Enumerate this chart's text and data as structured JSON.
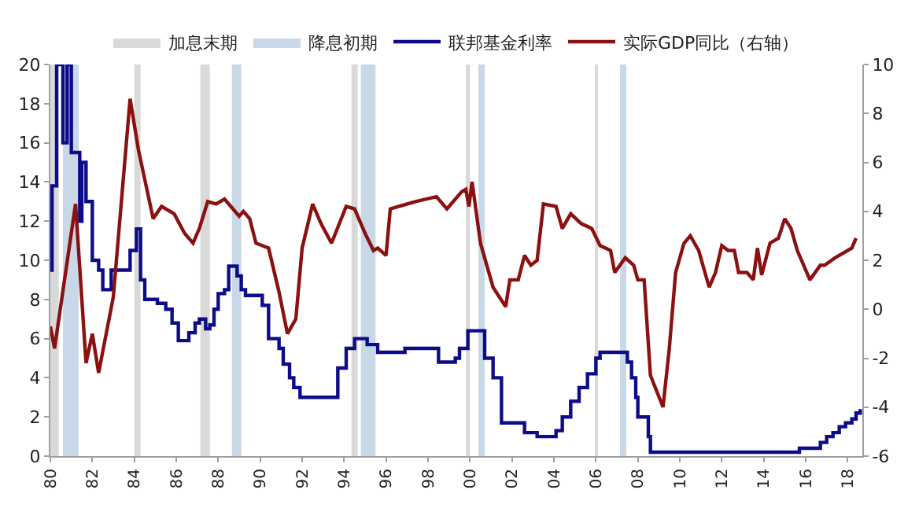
{
  "chart_data": {
    "type": "line",
    "xlim": [
      1980,
      2018.7
    ],
    "xticks": [
      {
        "value": 1980,
        "label": "80"
      },
      {
        "value": 1982,
        "label": "82"
      },
      {
        "value": 1984,
        "label": "84"
      },
      {
        "value": 1986,
        "label": "86"
      },
      {
        "value": 1988,
        "label": "88"
      },
      {
        "value": 1990,
        "label": "90"
      },
      {
        "value": 1992,
        "label": "92"
      },
      {
        "value": 1994,
        "label": "94"
      },
      {
        "value": 1996,
        "label": "96"
      },
      {
        "value": 1998,
        "label": "98"
      },
      {
        "value": 2000,
        "label": "00"
      },
      {
        "value": 2002,
        "label": "02"
      },
      {
        "value": 2004,
        "label": "04"
      },
      {
        "value": 2006,
        "label": "06"
      },
      {
        "value": 2008,
        "label": "08"
      },
      {
        "value": 2010,
        "label": "10"
      },
      {
        "value": 2012,
        "label": "12"
      },
      {
        "value": 2014,
        "label": "14"
      },
      {
        "value": 2016,
        "label": "16"
      },
      {
        "value": 2018,
        "label": "18"
      }
    ],
    "ylim": [
      0,
      20
    ],
    "yticks": [
      0,
      2,
      4,
      6,
      8,
      10,
      12,
      14,
      16,
      18,
      20
    ],
    "y2lim": [
      -6,
      10
    ],
    "y2ticks": [
      -6,
      -4,
      -2,
      0,
      2,
      4,
      6,
      8,
      10
    ],
    "legend": "top",
    "marker": "none",
    "line_style": "solid",
    "bands": [
      {
        "axis": "x",
        "from": 1980.0,
        "to": 1980.4,
        "label": "加息末期",
        "color": "#d9d9d9"
      },
      {
        "axis": "x",
        "from": 1980.6,
        "to": 1981.35,
        "label": "降息初期",
        "color": "#c9d8e6"
      },
      {
        "axis": "x",
        "from": 1984.0,
        "to": 1984.3,
        "label": null,
        "color": "#d9d9d9"
      },
      {
        "axis": "x",
        "from": 1987.15,
        "to": 1987.6,
        "label": null,
        "color": "#d9d9d9"
      },
      {
        "axis": "x",
        "from": 1988.65,
        "to": 1989.1,
        "label": null,
        "color": "#c9d8e6"
      },
      {
        "axis": "x",
        "from": 1994.35,
        "to": 1994.65,
        "label": null,
        "color": "#d9d9d9"
      },
      {
        "axis": "x",
        "from": 1994.8,
        "to": 1995.5,
        "label": null,
        "color": "#c9d8e6"
      },
      {
        "axis": "x",
        "from": 1999.8,
        "to": 2000.0,
        "label": null,
        "color": "#d9d9d9"
      },
      {
        "axis": "x",
        "from": 2000.4,
        "to": 2000.7,
        "label": null,
        "color": "#c9d8e6"
      },
      {
        "axis": "x",
        "from": 2005.95,
        "to": 2006.1,
        "label": null,
        "color": "#d9d9d9"
      },
      {
        "axis": "x",
        "from": 2007.15,
        "to": 2007.45,
        "label": null,
        "color": "#c9d8e6"
      }
    ],
    "series": [
      {
        "name": "联邦基金利率",
        "type": "step",
        "color": "#0c0c8a",
        "x": [
          1980.0,
          1980.08,
          1980.3,
          1980.6,
          1980.8,
          1981.0,
          1981.4,
          1981.5,
          1981.7,
          1982.0,
          1982.3,
          1982.5,
          1982.9,
          1983.8,
          1984.1,
          1984.3,
          1984.5,
          1985.1,
          1985.5,
          1985.8,
          1986.1,
          1986.6,
          1986.9,
          1987.1,
          1987.4,
          1987.6,
          1987.8,
          1988.0,
          1988.3,
          1988.5,
          1988.9,
          1989.1,
          1989.3,
          1990.1,
          1990.4,
          1990.9,
          1991.1,
          1991.4,
          1991.6,
          1991.9,
          1993.7,
          1994.1,
          1994.5,
          1995.1,
          1995.6,
          1996.9,
          1998.5,
          1999.3,
          1999.5,
          1999.9,
          2000.7,
          2001.1,
          2001.5,
          2002.6,
          2003.2,
          2004.1,
          2004.4,
          2004.8,
          2005.2,
          2005.6,
          2006.0,
          2006.2,
          2007.5,
          2007.7,
          2007.9,
          2008.0,
          2008.5,
          2008.6,
          2015.7,
          2016.7,
          2017.0,
          2017.3,
          2017.6,
          2017.9,
          2018.2,
          2018.4,
          2018.6
        ],
        "values": [
          9.5,
          13.8,
          20,
          16,
          20,
          15.5,
          12,
          15,
          13,
          10,
          9.5,
          8.5,
          9.5,
          10.5,
          11.6,
          9.0,
          8.0,
          7.8,
          7.5,
          6.8,
          5.9,
          6.3,
          6.8,
          7.0,
          6.5,
          6.7,
          7.5,
          8.3,
          8.5,
          9.7,
          9.2,
          8.5,
          8.2,
          7.7,
          6.0,
          5.5,
          4.7,
          4.0,
          3.5,
          3.0,
          4.5,
          5.5,
          6.0,
          5.7,
          5.3,
          5.5,
          4.8,
          5.0,
          5.5,
          6.4,
          5.0,
          4.0,
          1.7,
          1.2,
          1.0,
          1.3,
          2.0,
          2.8,
          3.5,
          4.2,
          5.0,
          5.3,
          4.8,
          4.0,
          3.0,
          2.0,
          1.0,
          0.2,
          0.4,
          0.7,
          1.0,
          1.2,
          1.5,
          1.7,
          1.9,
          2.2,
          2.4
        ]
      },
      {
        "name": "实际GDP同比（右轴）",
        "axis": "y2",
        "color": "#8b1010",
        "x": [
          1980.0,
          1980.2,
          1981.2,
          1981.7,
          1982.0,
          1982.3,
          1983.0,
          1983.8,
          1984.2,
          1984.9,
          1985.3,
          1985.9,
          1986.4,
          1986.8,
          1987.1,
          1987.5,
          1987.9,
          1988.3,
          1988.6,
          1989.0,
          1989.2,
          1989.5,
          1989.8,
          1990.4,
          1990.9,
          1991.3,
          1991.7,
          1992.0,
          1992.5,
          1992.9,
          1993.4,
          1994.1,
          1994.5,
          1995.0,
          1995.4,
          1995.6,
          1996.0,
          1996.2,
          1997.4,
          1998.4,
          1998.9,
          1999.6,
          1999.8,
          1999.95,
          2000.1,
          2000.5,
          2001.1,
          2001.7,
          2001.9,
          2002.3,
          2002.6,
          2002.9,
          2003.2,
          2003.5,
          2004.1,
          2004.4,
          2004.8,
          2005.3,
          2005.8,
          2006.2,
          2006.7,
          2006.9,
          2007.4,
          2007.8,
          2008.0,
          2008.3,
          2008.6,
          2009.2,
          2009.5,
          2009.8,
          2010.2,
          2010.5,
          2010.9,
          2011.2,
          2011.4,
          2011.7,
          2012.0,
          2012.3,
          2012.6,
          2012.8,
          2013.2,
          2013.5,
          2013.7,
          2013.9,
          2014.3,
          2014.7,
          2015.0,
          2015.3,
          2015.6,
          2016.2,
          2016.7,
          2016.9,
          2017.4,
          2018.2,
          2018.4
        ],
        "values": [
          -0.7,
          -1.6,
          4.3,
          -2.2,
          -1.0,
          -2.6,
          0.5,
          8.6,
          6.5,
          3.7,
          4.2,
          3.9,
          3.1,
          2.7,
          3.3,
          4.4,
          4.3,
          4.5,
          4.2,
          3.8,
          4.0,
          3.7,
          2.7,
          2.5,
          0.7,
          -1.0,
          -0.4,
          2.5,
          4.3,
          3.5,
          2.7,
          4.2,
          4.1,
          3.1,
          2.4,
          2.5,
          2.2,
          4.1,
          4.4,
          4.6,
          4.1,
          4.8,
          4.9,
          4.2,
          5.2,
          2.7,
          0.9,
          0.1,
          1.2,
          1.2,
          2.2,
          1.8,
          2.0,
          4.3,
          4.2,
          3.3,
          3.9,
          3.5,
          3.3,
          2.6,
          2.4,
          1.5,
          2.1,
          1.8,
          1.2,
          1.2,
          -2.7,
          -4.0,
          -1.6,
          1.5,
          2.7,
          3.0,
          2.4,
          1.5,
          0.9,
          1.5,
          2.6,
          2.4,
          2.4,
          1.5,
          1.5,
          1.2,
          2.5,
          1.4,
          2.7,
          2.9,
          3.7,
          3.3,
          2.4,
          1.2,
          1.8,
          1.8,
          2.1,
          2.5,
          2.9
        ]
      }
    ]
  }
}
